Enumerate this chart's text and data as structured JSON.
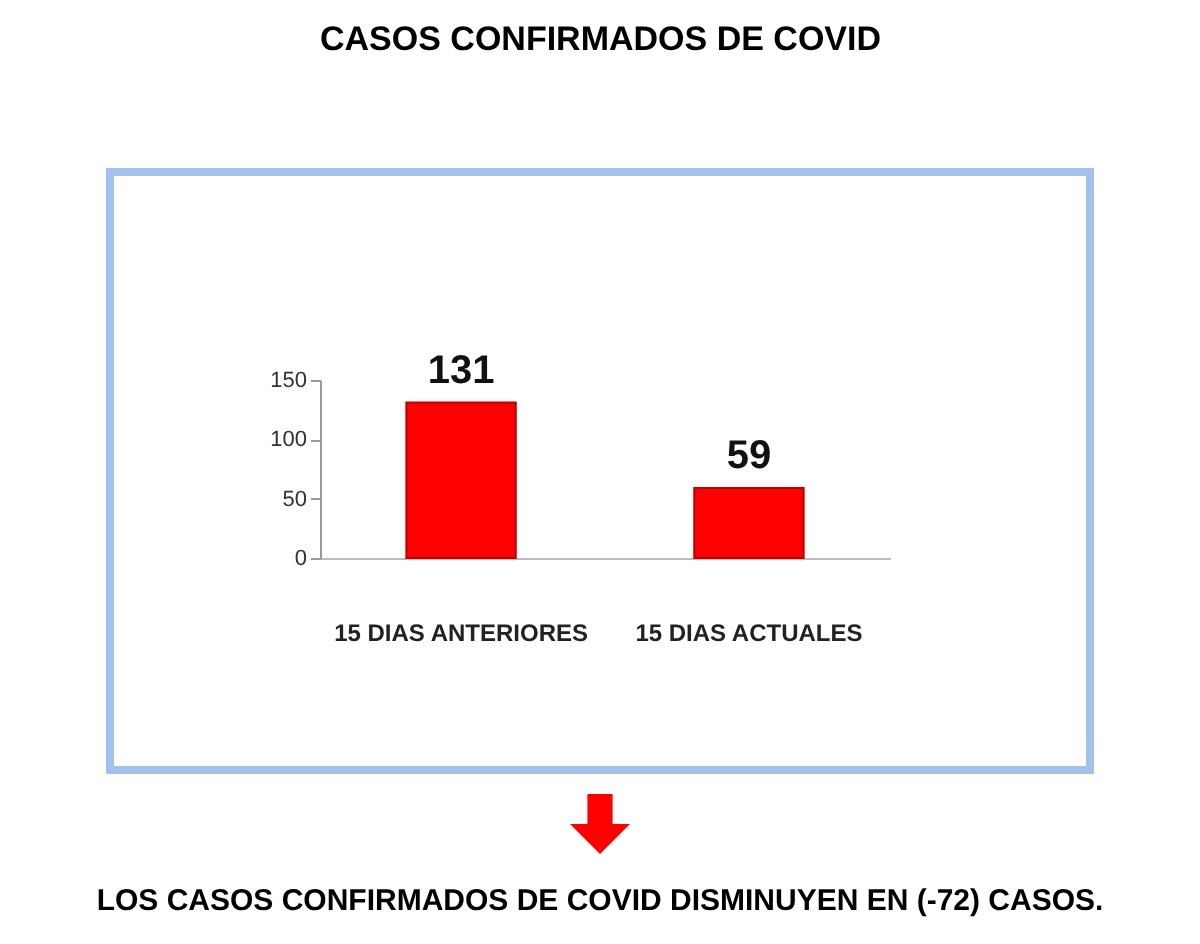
{
  "chart_data": {
    "type": "bar",
    "title": "CASOS CONFIRMADOS  DE COVID",
    "categories": [
      "15 DIAS ANTERIORES",
      "15 DIAS ACTUALES"
    ],
    "values": [
      131,
      59
    ],
    "color": "#ff0000",
    "ylim": [
      0,
      150
    ],
    "yticks": [
      0,
      50,
      100,
      150
    ],
    "grid": false,
    "data_labels": true,
    "annotations": [
      "LOS CASOS CONFIRMADOS DE COVID DISMINUYEN EN (-72) CASOS."
    ]
  }
}
